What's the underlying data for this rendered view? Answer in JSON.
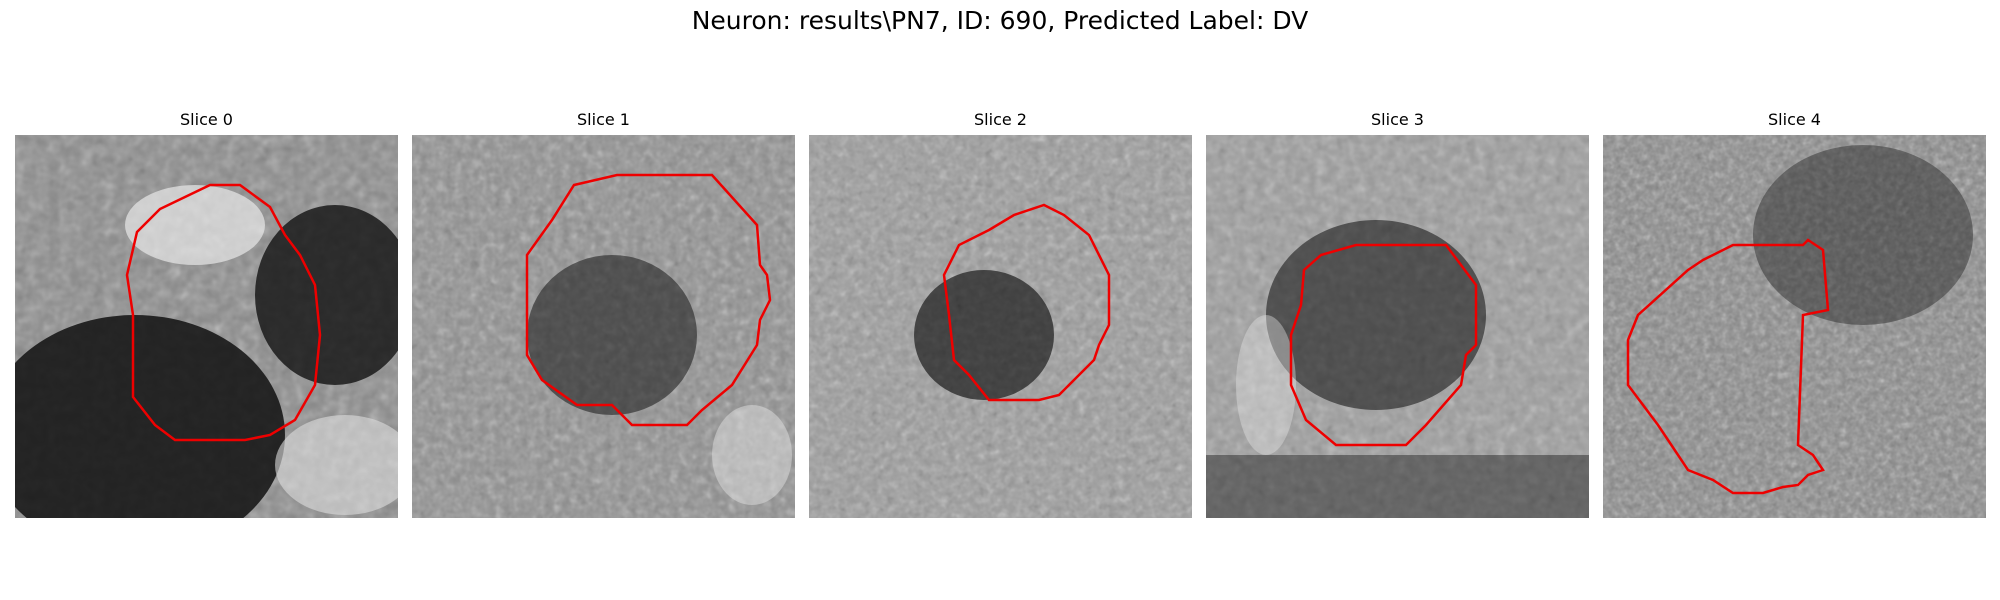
{
  "figure": {
    "title": "Neuron: results\\PN7, ID: 690, Predicted Label: DV"
  },
  "panels": [
    {
      "title": "Slice 0",
      "contour_color": "#ee0000"
    },
    {
      "title": "Slice 1",
      "contour_color": "#ee0000"
    },
    {
      "title": "Slice 2",
      "contour_color": "#ee0000"
    },
    {
      "title": "Slice 3",
      "contour_color": "#ee0000"
    },
    {
      "title": "Slice 4",
      "contour_color": "#ee0000"
    }
  ]
}
